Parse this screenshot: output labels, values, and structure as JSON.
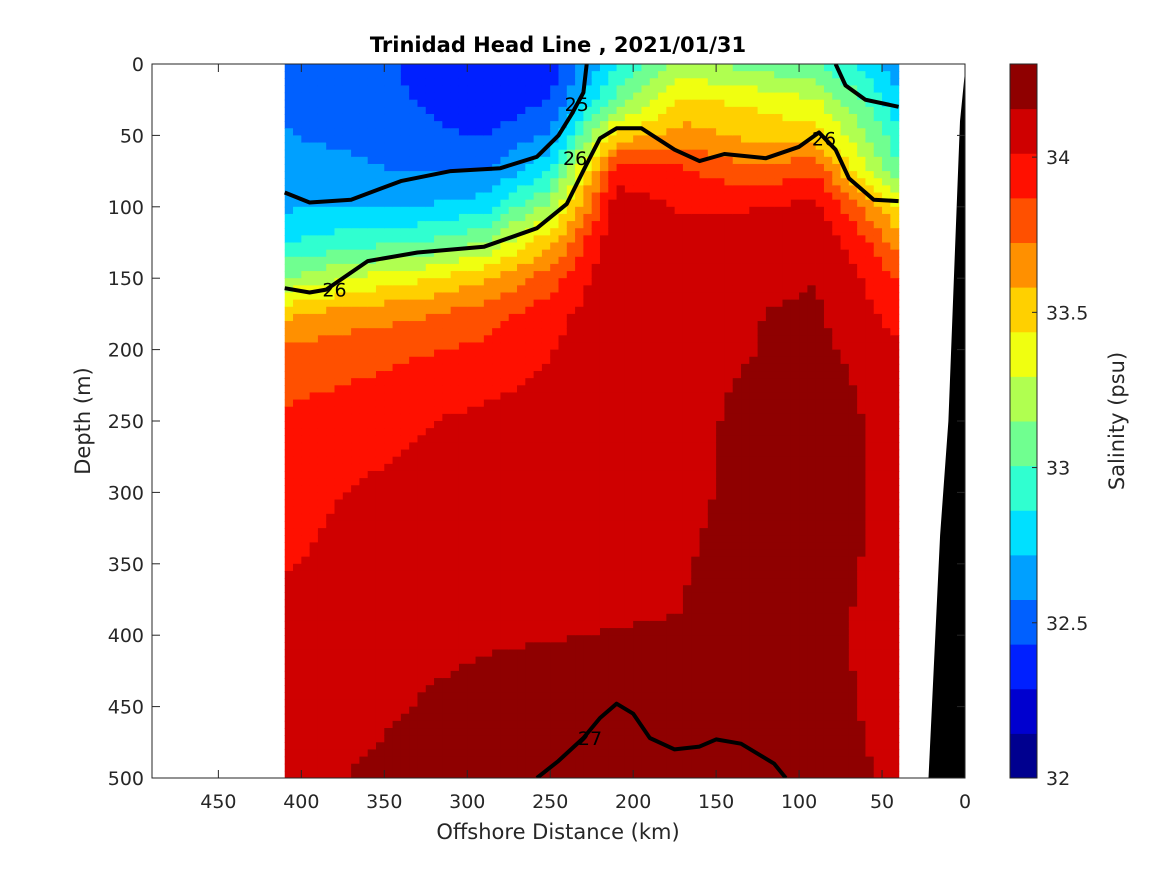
{
  "chart_data": {
    "type": "heatmap",
    "title": "Trinidad Head Line , 2021/01/31",
    "xlabel": "Offshore Distance (km)",
    "ylabel": "Depth (m)",
    "colorbar_label": "Salinity (psu)",
    "xlim": [
      490,
      0
    ],
    "x_direction": "reversed",
    "ylim": [
      500,
      0
    ],
    "y_direction": "reversed (depth increases downward)",
    "x_ticks": [
      450,
      400,
      350,
      300,
      250,
      200,
      150,
      100,
      50,
      0
    ],
    "y_ticks": [
      0,
      50,
      100,
      150,
      200,
      250,
      300,
      350,
      400,
      450,
      500
    ],
    "colorbar_ticks": [
      32,
      32.5,
      33,
      33.5,
      34
    ],
    "colorbar_range": [
      32,
      34.3
    ],
    "colormap": [
      "#00008f",
      "#0000cf",
      "#0020ff",
      "#0060ff",
      "#00a0ff",
      "#00e0ff",
      "#30ffd0",
      "#70ff90",
      "#b0ff50",
      "#f0ff10",
      "#ffd000",
      "#ff9000",
      "#ff5000",
      "#ff1000",
      "#cf0000",
      "#8f0000"
    ],
    "data_extent_km": [
      410,
      40
    ],
    "salinity_grid": {
      "x_km": [
        410,
        370,
        330,
        290,
        250,
        210,
        170,
        130,
        90,
        60,
        40
      ],
      "depth_m": [
        0,
        25,
        50,
        75,
        100,
        125,
        150,
        175,
        200,
        250,
        300,
        350,
        400,
        450,
        500
      ],
      "values": [
        [
          32.55,
          32.5,
          32.4,
          32.3,
          32.35,
          32.85,
          33.2,
          33.1,
          33.0,
          32.8,
          32.6
        ],
        [
          32.56,
          32.52,
          32.42,
          32.32,
          32.42,
          33.05,
          33.45,
          33.4,
          33.3,
          33.0,
          32.75
        ],
        [
          32.58,
          32.55,
          32.48,
          32.42,
          32.6,
          33.5,
          33.65,
          33.55,
          33.5,
          33.15,
          32.9
        ],
        [
          32.62,
          32.6,
          32.56,
          32.55,
          32.85,
          33.95,
          33.9,
          33.75,
          33.85,
          33.3,
          33.05
        ],
        [
          32.7,
          32.72,
          32.72,
          32.8,
          33.2,
          34.1,
          34.0,
          34.0,
          34.05,
          33.7,
          33.4
        ],
        [
          32.85,
          32.95,
          33.0,
          33.15,
          33.55,
          34.15,
          34.05,
          34.1,
          34.12,
          33.9,
          33.65
        ],
        [
          33.15,
          33.3,
          33.4,
          33.55,
          33.8,
          34.15,
          34.1,
          34.12,
          34.15,
          34.0,
          33.85
        ],
        [
          33.55,
          33.65,
          33.7,
          33.8,
          33.95,
          34.15,
          34.1,
          34.15,
          34.18,
          34.05,
          33.95
        ],
        [
          33.75,
          33.8,
          33.85,
          33.9,
          34.0,
          34.15,
          34.1,
          34.15,
          34.2,
          34.1,
          34.05
        ],
        [
          33.9,
          33.95,
          34.0,
          34.05,
          34.08,
          34.12,
          34.1,
          34.2,
          34.28,
          34.15,
          34.1
        ],
        [
          33.95,
          34.02,
          34.05,
          34.1,
          34.12,
          34.12,
          34.12,
          34.2,
          34.3,
          34.15,
          34.12
        ],
        [
          34.0,
          34.06,
          34.1,
          34.12,
          34.13,
          34.13,
          34.15,
          34.2,
          34.22,
          34.15,
          34.12
        ],
        [
          34.08,
          34.1,
          34.12,
          34.14,
          34.15,
          34.16,
          34.16,
          34.2,
          34.18,
          34.14,
          34.12
        ],
        [
          34.1,
          34.12,
          34.16,
          34.2,
          34.22,
          34.22,
          34.2,
          34.25,
          34.2,
          34.15,
          34.14
        ],
        [
          34.12,
          34.16,
          34.2,
          34.22,
          34.24,
          34.25,
          34.22,
          34.28,
          34.22,
          34.16,
          34.15
        ]
      ]
    },
    "density_contours": [
      {
        "level": "25",
        "bold": true,
        "points": [
          [
            228,
            0
          ],
          [
            230,
            20
          ],
          [
            237,
            35
          ],
          [
            245,
            50
          ],
          [
            258,
            65
          ],
          [
            280,
            73
          ],
          [
            310,
            75
          ],
          [
            340,
            82
          ],
          [
            370,
            95
          ],
          [
            395,
            97
          ],
          [
            410,
            90
          ]
        ],
        "right_points": [
          [
            78,
            0
          ],
          [
            72,
            15
          ],
          [
            60,
            25
          ],
          [
            40,
            30
          ]
        ]
      },
      {
        "level": "26",
        "bold": true,
        "points": [
          [
            410,
            157
          ],
          [
            395,
            160
          ],
          [
            385,
            158
          ],
          [
            360,
            138
          ],
          [
            330,
            132
          ],
          [
            290,
            128
          ],
          [
            258,
            115
          ],
          [
            240,
            98
          ],
          [
            228,
            70
          ],
          [
            220,
            52
          ],
          [
            210,
            45
          ],
          [
            195,
            45
          ],
          [
            175,
            60
          ],
          [
            160,
            68
          ],
          [
            145,
            63
          ],
          [
            120,
            66
          ],
          [
            100,
            58
          ],
          [
            88,
            48
          ],
          [
            78,
            60
          ],
          [
            70,
            80
          ],
          [
            55,
            95
          ],
          [
            40,
            96
          ]
        ]
      },
      {
        "level": "27",
        "bold": true,
        "points": [
          [
            258,
            500
          ],
          [
            245,
            488
          ],
          [
            230,
            472
          ],
          [
            220,
            458
          ],
          [
            210,
            448
          ],
          [
            200,
            455
          ],
          [
            190,
            472
          ],
          [
            175,
            480
          ],
          [
            160,
            478
          ],
          [
            150,
            473
          ],
          [
            135,
            476
          ],
          [
            115,
            490
          ],
          [
            108,
            500
          ]
        ]
      }
    ],
    "bottom_topography": [
      [
        22,
        500
      ],
      [
        15,
        330
      ],
      [
        10,
        250
      ],
      [
        6,
        130
      ],
      [
        3,
        40
      ],
      [
        0,
        5
      ],
      [
        0,
        500
      ]
    ],
    "contour_labels": [
      {
        "text": "25",
        "x_km": 234,
        "depth_m": 28
      },
      {
        "text": "26",
        "x_km": 235,
        "depth_m": 66
      },
      {
        "text": "26",
        "x_km": 85,
        "depth_m": 52
      },
      {
        "text": "26",
        "x_km": 380,
        "depth_m": 158
      },
      {
        "text": "27",
        "x_km": 226,
        "depth_m": 472
      }
    ]
  }
}
